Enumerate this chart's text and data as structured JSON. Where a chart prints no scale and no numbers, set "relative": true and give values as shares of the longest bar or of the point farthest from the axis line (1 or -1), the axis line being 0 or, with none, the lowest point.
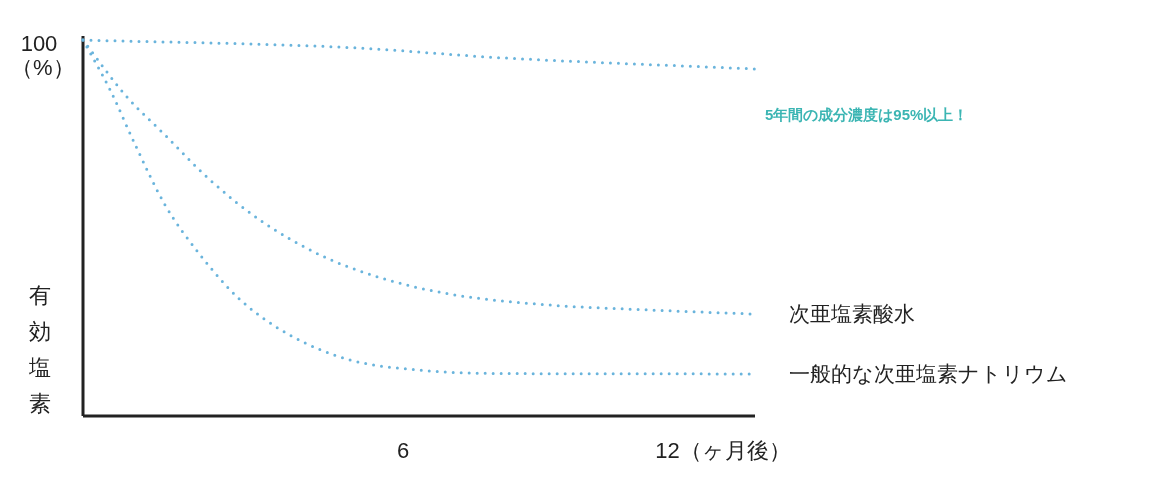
{
  "chart_data": {
    "type": "line",
    "relative": true,
    "ylabel": "有効塩素",
    "line_style": "dotted",
    "marker": "none",
    "grid": false,
    "legend": false,
    "xlim": [
      0,
      12.6
    ],
    "xticks": [
      6,
      {
        "value": 12,
        "label": "12（ヶ月後）"
      }
    ],
    "annotations": [
      {
        "text": "100（%）",
        "x": 0,
        "y": 1
      },
      "5年間の成分濃度は95%以上！"
    ],
    "series": [
      {
        "color": "#6ab4dc",
        "x": [
          0,
          5.0,
          7.8,
          12.6
        ],
        "values": [
          1.0,
          0.98,
          0.953,
          0.923
        ]
      },
      {
        "name": "次亜塩素酸水",
        "color": "#6ab4dc",
        "x": [
          0,
          0.79,
          1.54,
          2.38,
          3.32,
          4.45,
          5.57,
          6.89,
          8.76,
          10.64,
          12.6
        ],
        "values": [
          1.0,
          0.854,
          0.747,
          0.628,
          0.521,
          0.428,
          0.368,
          0.324,
          0.295,
          0.282,
          0.271
        ]
      },
      {
        "name": "一般的な次亜塩素ナトリウム",
        "color": "#6ab4dc",
        "x": [
          0,
          0.51,
          0.98,
          1.54,
          2.2,
          2.95,
          3.88,
          5.01,
          6.32,
          7.82,
          12.6
        ],
        "values": [
          1.0,
          0.867,
          0.721,
          0.561,
          0.428,
          0.309,
          0.215,
          0.149,
          0.122,
          0.113,
          0.112
        ]
      }
    ]
  }
}
